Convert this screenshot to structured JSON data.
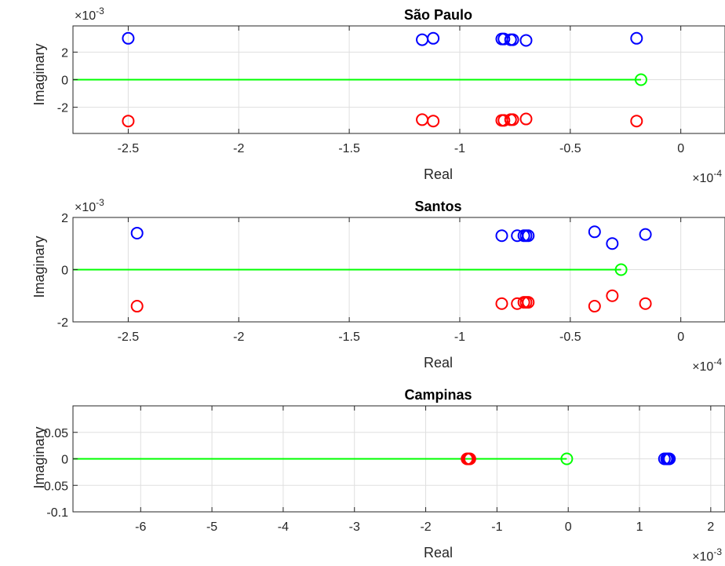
{
  "chart_data": [
    {
      "type": "scatter",
      "title": "São Paulo",
      "xlabel": "Real",
      "ylabel": "Imaginary",
      "x_multiplier": "×10",
      "x_exponent": "-4",
      "y_multiplier": "×10",
      "y_exponent": "-3",
      "xlim": [
        -2.75,
        0.2
      ],
      "ylim": [
        -3.9,
        3.9
      ],
      "xticks": [
        -2.5,
        -2,
        -1.5,
        -1,
        -0.5,
        0
      ],
      "xtick_labels": [
        "-2.5",
        "-2",
        "-1.5",
        "-1",
        "-0.5",
        "0"
      ],
      "yticks": [
        -2,
        0,
        2
      ],
      "ytick_labels": [
        "-2",
        "0",
        "2"
      ],
      "grid": true,
      "line": {
        "color": "#00ff00",
        "x": [
          -2.75,
          -0.18
        ],
        "y": [
          0,
          0
        ]
      },
      "series": [
        {
          "color": "#0000ff",
          "marker": "circle",
          "x": [
            -2.5,
            -1.17,
            -1.12,
            -0.81,
            -0.8,
            -0.77,
            -0.76,
            -0.7,
            -0.2
          ],
          "y": [
            3.0,
            2.9,
            3.0,
            2.95,
            2.95,
            2.9,
            2.9,
            2.85,
            3.0
          ]
        },
        {
          "color": "#ff0000",
          "marker": "circle",
          "x": [
            -2.5,
            -1.17,
            -1.12,
            -0.81,
            -0.8,
            -0.77,
            -0.76,
            -0.7,
            -0.2
          ],
          "y": [
            -3.0,
            -2.9,
            -3.0,
            -2.95,
            -2.95,
            -2.9,
            -2.9,
            -2.85,
            -3.0
          ]
        },
        {
          "color": "#00ff00",
          "marker": "circle",
          "x": [
            -0.18
          ],
          "y": [
            0
          ]
        }
      ]
    },
    {
      "type": "scatter",
      "title": "Santos",
      "xlabel": "Real",
      "ylabel": "",
      "x_multiplier": "×10",
      "x_exponent": "-4",
      "y_multiplier": "×10",
      "y_exponent": "-3",
      "xlim": [
        -2.75,
        0.2
      ],
      "ylim": [
        -2,
        2
      ],
      "xticks": [
        -2.5,
        -2,
        -1.5,
        -1,
        -0.5,
        0
      ],
      "xtick_labels": [
        "-2.5",
        "-2",
        "-1.5",
        "-1",
        "-0.5",
        "0"
      ],
      "yticks": [
        -2,
        0,
        2
      ],
      "ytick_labels": [
        "-2",
        "0",
        "2"
      ],
      "grid": true,
      "line": {
        "color": "#00ff00",
        "x": [
          -2.75,
          -0.27
        ],
        "y": [
          0,
          0
        ]
      },
      "series": [
        {
          "color": "#0000ff",
          "marker": "circle",
          "x": [
            -2.46,
            -0.81,
            -0.74,
            -0.71,
            -0.7,
            -0.69,
            -0.39,
            -0.31,
            -0.16
          ],
          "y": [
            1.4,
            1.3,
            1.3,
            1.3,
            1.3,
            1.3,
            1.45,
            1.0,
            1.35
          ]
        },
        {
          "color": "#ff0000",
          "marker": "circle",
          "x": [
            -2.46,
            -0.81,
            -0.74,
            -0.71,
            -0.7,
            -0.69,
            -0.39,
            -0.31,
            -0.16
          ],
          "y": [
            -1.4,
            -1.3,
            -1.3,
            -1.25,
            -1.25,
            -1.25,
            -1.4,
            -1.0,
            -1.3
          ]
        },
        {
          "color": "#00ff00",
          "marker": "circle",
          "x": [
            -0.27
          ],
          "y": [
            0
          ]
        }
      ]
    },
    {
      "type": "scatter",
      "title": "Campinas",
      "xlabel": "Real",
      "ylabel": "",
      "x_multiplier": "×10",
      "x_exponent": "-3",
      "y_multiplier": "",
      "y_exponent": "",
      "xlim": [
        -6.95,
        2.2
      ],
      "ylim": [
        -0.1,
        0.1
      ],
      "xticks": [
        -6,
        -5,
        -4,
        -3,
        -2,
        -1,
        0,
        1,
        2
      ],
      "xtick_labels": [
        "-6",
        "-5",
        "-4",
        "-3",
        "-2",
        "-1",
        "0",
        "1",
        "2"
      ],
      "yticks": [
        -0.1,
        -0.05,
        0,
        0.05
      ],
      "ytick_labels": [
        "-0.1",
        "-0.05",
        "0",
        "0.05"
      ],
      "grid": true,
      "line": {
        "color": "#00ff00",
        "x": [
          -6.95,
          -0.02
        ],
        "y": [
          0,
          0
        ]
      },
      "series": [
        {
          "color": "#0000ff",
          "marker": "circle",
          "x": [
            1.35,
            1.38,
            1.4,
            1.42
          ],
          "y": [
            0,
            0,
            0,
            0
          ]
        },
        {
          "color": "#ff0000",
          "marker": "circle",
          "x": [
            -1.42,
            -1.4,
            -1.38
          ],
          "y": [
            0,
            0,
            0
          ]
        },
        {
          "color": "#00ff00",
          "marker": "circle",
          "x": [
            -0.02
          ],
          "y": [
            0
          ]
        }
      ]
    }
  ]
}
